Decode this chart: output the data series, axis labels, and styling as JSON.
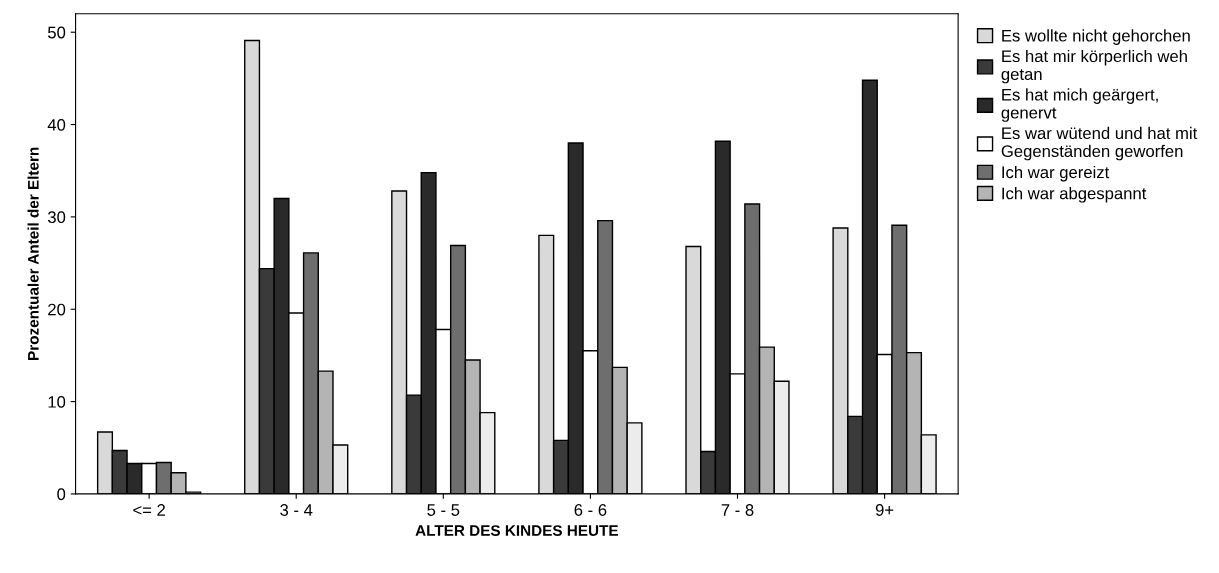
{
  "chart_data": {
    "type": "bar",
    "xlabel": "ALTER DES KINDES HEUTE",
    "ylabel": "Prozentualer Anteil der Eltern",
    "categories": [
      "<= 2",
      "3 - 4",
      "5 - 5",
      "6 - 6",
      "7 - 8",
      "9+"
    ],
    "ylim": [
      0,
      52
    ],
    "yticks": [
      0,
      10,
      20,
      30,
      40,
      50
    ],
    "grid": false,
    "legend": "top right",
    "series": [
      {
        "name": "Es wollte nicht gehorchen",
        "color": "#d9d9d9",
        "values": [
          6.7,
          49.1,
          32.8,
          28.0,
          26.8,
          28.8
        ]
      },
      {
        "name": "Es hat mir körperlich weh\ngetan",
        "color": "#3a3a3a",
        "values": [
          4.7,
          24.4,
          10.7,
          5.8,
          4.6,
          8.4
        ]
      },
      {
        "name": "Es hat mich geärgert,\ngenervt",
        "color": "#2a2a2a",
        "values": [
          3.3,
          32.0,
          34.8,
          38.0,
          38.2,
          44.8
        ]
      },
      {
        "name": "Es war wütend und hat mit\nGegenständen geworfen",
        "color": "#ffffff",
        "values": [
          3.3,
          19.6,
          17.8,
          15.5,
          13.0,
          15.1
        ]
      },
      {
        "name": "Ich war gereizt",
        "color": "#6e6e6e",
        "values": [
          3.4,
          26.1,
          26.9,
          29.6,
          31.4,
          29.1
        ]
      },
      {
        "name": "Ich war abgespannt",
        "color": "#b4b4b4",
        "values": [
          2.3,
          13.3,
          14.5,
          13.7,
          15.9,
          15.3
        ]
      },
      {
        "color": "#ececec",
        "values": [
          0.2,
          5.3,
          8.8,
          7.7,
          12.2,
          6.4
        ]
      }
    ]
  }
}
